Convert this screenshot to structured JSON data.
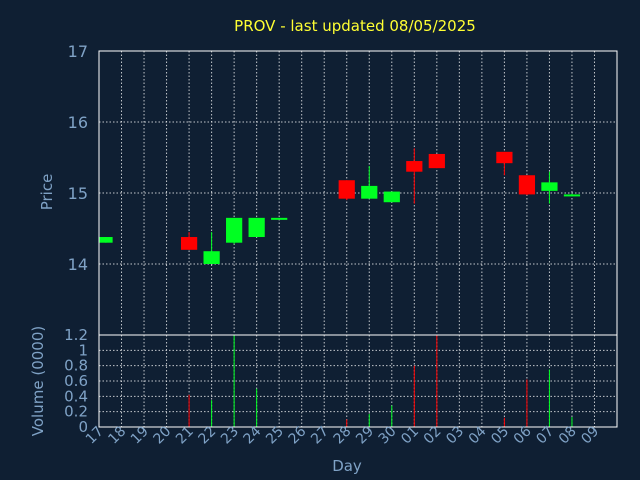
{
  "chart_data": {
    "type": "candlestick",
    "title": "PROV - last updated 08/05/2025",
    "xlabel": "Day",
    "colors": {
      "background": "#0f1f33",
      "up": "#00ff22",
      "down": "#ff0000",
      "title": "#ffff33",
      "axis_text": "#7fa2c6",
      "grid": "#ffffff"
    },
    "grid": true,
    "x_ticks": [
      "17",
      "18",
      "19",
      "20",
      "21",
      "22",
      "23",
      "24",
      "25",
      "26",
      "27",
      "28",
      "29",
      "30",
      "01",
      "02",
      "03",
      "04",
      "05",
      "06",
      "07",
      "08",
      "09"
    ],
    "price_panel": {
      "ylabel": "Price",
      "ylim": [
        13.0,
        17.0
      ],
      "y_ticks": [
        "14",
        "15",
        "16",
        "17"
      ],
      "candles": [
        {
          "day": "17",
          "open": 14.3,
          "close": 14.38,
          "high": 14.38,
          "low": 14.3
        },
        {
          "day": "21",
          "open": 14.38,
          "close": 14.2,
          "high": 14.45,
          "low": 14.2
        },
        {
          "day": "22",
          "open": 14.0,
          "close": 14.18,
          "high": 14.45,
          "low": 14.0
        },
        {
          "day": "23",
          "open": 14.3,
          "close": 14.65,
          "high": 14.65,
          "low": 14.28
        },
        {
          "day": "24",
          "open": 14.38,
          "close": 14.65,
          "high": 14.65,
          "low": 14.38
        },
        {
          "day": "25",
          "open": 14.64,
          "close": 14.65,
          "high": 14.65,
          "low": 14.64
        },
        {
          "day": "28",
          "open": 15.18,
          "close": 14.92,
          "high": 15.18,
          "low": 14.9
        },
        {
          "day": "29",
          "open": 14.92,
          "close": 15.1,
          "high": 15.38,
          "low": 14.92
        },
        {
          "day": "30",
          "open": 14.87,
          "close": 15.02,
          "high": 15.02,
          "low": 14.87
        },
        {
          "day": "01",
          "open": 15.45,
          "close": 15.3,
          "high": 15.63,
          "low": 14.85
        },
        {
          "day": "02",
          "open": 15.55,
          "close": 15.35,
          "high": 15.55,
          "low": 15.35
        },
        {
          "day": "05",
          "open": 15.58,
          "close": 15.42,
          "high": 15.58,
          "low": 15.25
        },
        {
          "day": "06",
          "open": 15.25,
          "close": 14.98,
          "high": 15.25,
          "low": 14.97
        },
        {
          "day": "07",
          "open": 15.03,
          "close": 15.15,
          "high": 15.3,
          "low": 14.85
        },
        {
          "day": "08",
          "open": 14.98,
          "close": 14.98,
          "high": 14.99,
          "low": 14.97
        }
      ]
    },
    "volume_panel": {
      "ylabel": "Volume (0000)",
      "ylim": [
        0,
        1.2
      ],
      "y_ticks": [
        "0",
        "0.2",
        "0.4",
        "0.6",
        "0.8",
        "1",
        "1.2"
      ],
      "bars": [
        {
          "day": "21",
          "value": 0.42,
          "direction": "down"
        },
        {
          "day": "22",
          "value": 0.35,
          "direction": "up"
        },
        {
          "day": "23",
          "value": 1.2,
          "direction": "up"
        },
        {
          "day": "24",
          "value": 0.5,
          "direction": "up"
        },
        {
          "day": "28",
          "value": 0.1,
          "direction": "down"
        },
        {
          "day": "29",
          "value": 0.17,
          "direction": "up"
        },
        {
          "day": "30",
          "value": 0.28,
          "direction": "up"
        },
        {
          "day": "01",
          "value": 0.8,
          "direction": "down"
        },
        {
          "day": "02",
          "value": 1.2,
          "direction": "down"
        },
        {
          "day": "05",
          "value": 0.12,
          "direction": "down"
        },
        {
          "day": "06",
          "value": 0.62,
          "direction": "down"
        },
        {
          "day": "07",
          "value": 0.75,
          "direction": "up"
        },
        {
          "day": "08",
          "value": 0.13,
          "direction": "up"
        }
      ]
    }
  }
}
